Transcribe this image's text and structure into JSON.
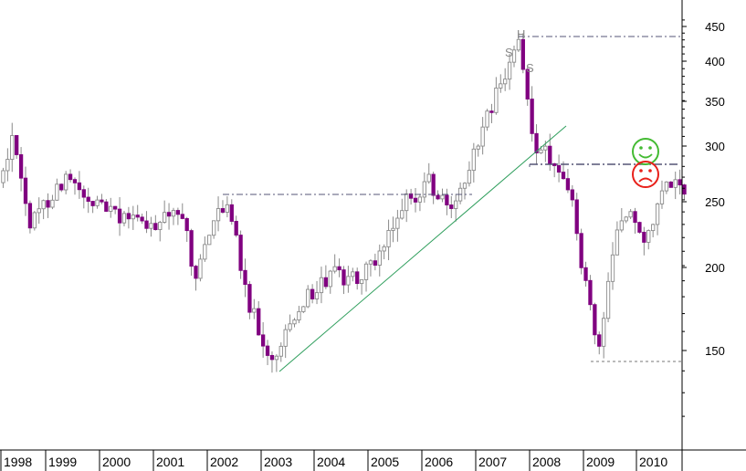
{
  "chart_data": {
    "type": "candlestick",
    "title": "",
    "xlabel": "",
    "ylabel": "",
    "y_scale": "log",
    "ylim": [
      110,
      470
    ],
    "xlim": [
      1997.98,
      2010.79
    ],
    "x_ticks": [
      "1998",
      "1999",
      "2000",
      "2001",
      "2002",
      "2003",
      "2004",
      "2005",
      "2006",
      "2007",
      "2008",
      "2009",
      "2010"
    ],
    "y_ticks": [
      "150",
      "200",
      "250",
      "300",
      "350",
      "400",
      "450"
    ],
    "y_tick_values": [
      150,
      200,
      250,
      300,
      350,
      400,
      450
    ],
    "grid": false,
    "colors": {
      "up_body": "#ffffff",
      "up_outline": "#8a8a8a",
      "down_body": "#800080",
      "wick": "#8a8a8a",
      "trendline": "#2e9e5c",
      "reference_line": "#555577",
      "happy_face": "#44bb33",
      "sad_face": "#e8201a"
    },
    "annotations": {
      "pattern_labels": [
        "S",
        "H",
        "S"
      ],
      "faces": [
        "smiling-face",
        "frowning-face"
      ]
    }
  }
}
